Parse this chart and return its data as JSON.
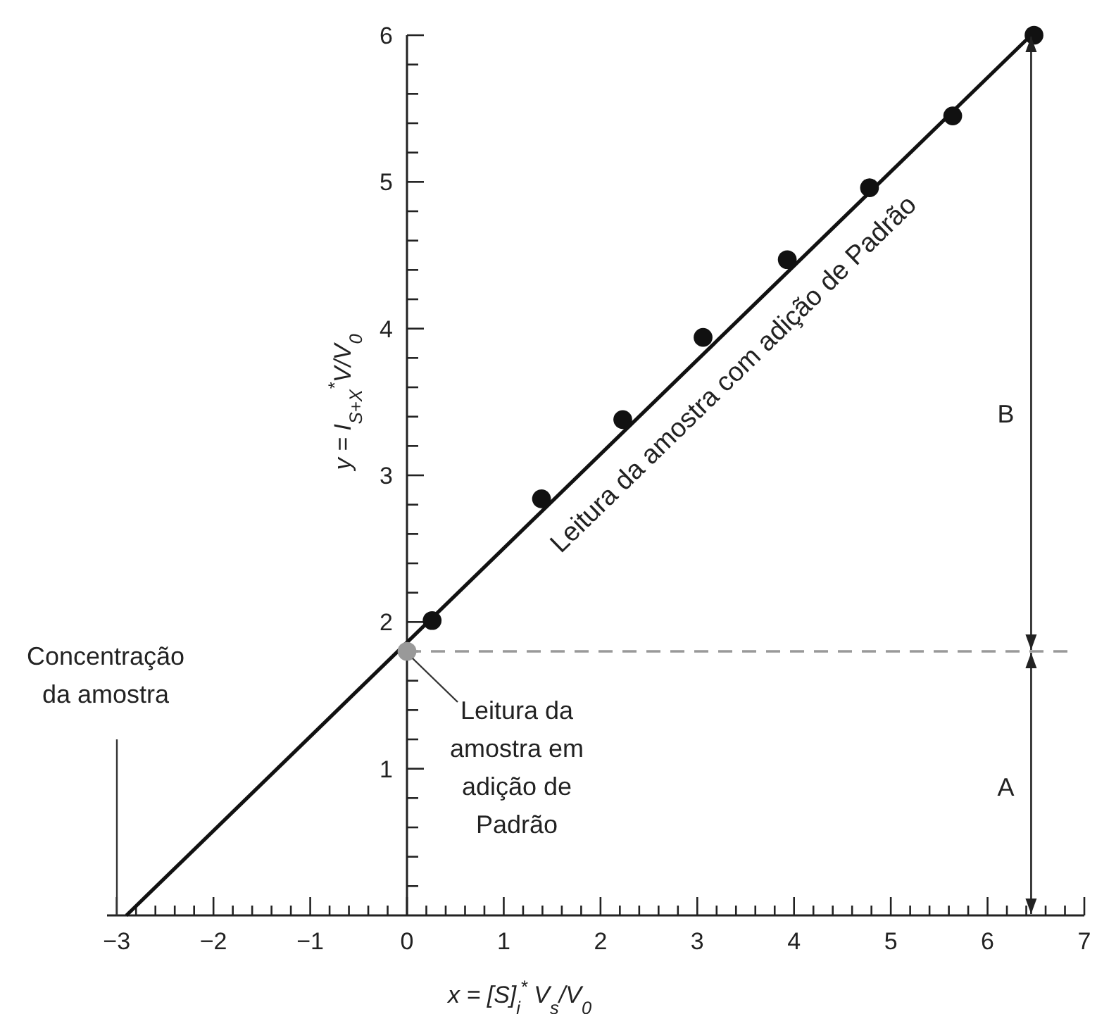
{
  "chart_data": {
    "type": "scatter",
    "xlabel": "x = [S]$_{i}$$^{*}$ V$_{s}$/V$_{0}$",
    "ylabel": "y = I$_{S+X}$$^{*}$V/V$_{0}$",
    "xlim": [
      -3.1,
      7
    ],
    "ylim": [
      0,
      6
    ],
    "xticks": [
      {
        "value": -3,
        "label": "−3"
      },
      {
        "value": -2.8,
        "label": null
      },
      {
        "value": -2.6,
        "label": null
      },
      {
        "value": -2.4,
        "label": null
      },
      {
        "value": -2.2,
        "label": null
      },
      {
        "value": -2,
        "label": "−2"
      },
      {
        "value": -1.8,
        "label": null
      },
      {
        "value": -1.6,
        "label": null
      },
      {
        "value": -1.4,
        "label": null
      },
      {
        "value": -1.2,
        "label": null
      },
      {
        "value": -1,
        "label": "−1"
      },
      {
        "value": -0.8,
        "label": null
      },
      {
        "value": -0.6,
        "label": null
      },
      {
        "value": -0.4,
        "label": null
      },
      {
        "value": -0.2,
        "label": null
      },
      0,
      {
        "value": 0.2,
        "label": null
      },
      {
        "value": 0.4,
        "label": null
      },
      {
        "value": 0.6,
        "label": null
      },
      {
        "value": 0.8,
        "label": null
      },
      1,
      {
        "value": 1.2,
        "label": null
      },
      {
        "value": 1.4,
        "label": null
      },
      {
        "value": 1.6,
        "label": null
      },
      {
        "value": 1.8,
        "label": null
      },
      2,
      {
        "value": 2.2,
        "label": null
      },
      {
        "value": 2.4,
        "label": null
      },
      {
        "value": 2.6,
        "label": null
      },
      {
        "value": 2.8,
        "label": null
      },
      3,
      {
        "value": 3.2,
        "label": null
      },
      {
        "value": 3.4,
        "label": null
      },
      {
        "value": 3.6,
        "label": null
      },
      {
        "value": 3.8,
        "label": null
      },
      4,
      {
        "value": 4.2,
        "label": null
      },
      {
        "value": 4.4,
        "label": null
      },
      {
        "value": 4.6,
        "label": null
      },
      {
        "value": 4.8,
        "label": null
      },
      5,
      {
        "value": 5.2,
        "label": null
      },
      {
        "value": 5.4,
        "label": null
      },
      {
        "value": 5.6,
        "label": null
      },
      {
        "value": 5.8,
        "label": null
      },
      6,
      {
        "value": 6.2,
        "label": null
      },
      {
        "value": 6.4,
        "label": null
      },
      {
        "value": 6.6,
        "label": null
      },
      {
        "value": 6.8,
        "label": null
      },
      7
    ],
    "yticks": [
      {
        "value": 0.2,
        "label": null
      },
      {
        "value": 0.4,
        "label": null
      },
      {
        "value": 0.6,
        "label": null
      },
      {
        "value": 0.8,
        "label": null
      },
      1,
      {
        "value": 1.2,
        "label": null
      },
      {
        "value": 1.4,
        "label": null
      },
      {
        "value": 1.6,
        "label": null
      },
      {
        "value": 1.8,
        "label": null
      },
      2,
      {
        "value": 2.2,
        "label": null
      },
      {
        "value": 2.4,
        "label": null
      },
      {
        "value": 2.6,
        "label": null
      },
      {
        "value": 2.8,
        "label": null
      },
      3,
      {
        "value": 3.2,
        "label": null
      },
      {
        "value": 3.4,
        "label": null
      },
      {
        "value": 3.6,
        "label": null
      },
      {
        "value": 3.8,
        "label": null
      },
      4,
      {
        "value": 4.2,
        "label": null
      },
      {
        "value": 4.4,
        "label": null
      },
      {
        "value": 4.6,
        "label": null
      },
      {
        "value": 4.8,
        "label": null
      },
      5,
      {
        "value": 5.2,
        "label": null
      },
      {
        "value": 5.4,
        "label": null
      },
      {
        "value": 5.6,
        "label": null
      },
      {
        "value": 5.8,
        "label": null
      },
      6
    ],
    "grid": false,
    "marker": "circle",
    "series": [
      {
        "color": "#111111",
        "x": [
          0.26,
          1.39,
          2.23,
          3.06,
          3.93,
          4.78,
          5.64,
          6.48
        ],
        "values": [
          2.01,
          2.84,
          3.38,
          3.94,
          4.47,
          4.96,
          5.45,
          6.0
        ]
      },
      {
        "color": "#999999",
        "x": [
          0
        ],
        "values": [
          1.8
        ]
      },
      {
        "type": "line",
        "color": "#111111",
        "marker": "none",
        "line_style": "solid",
        "x": [
          -2.9,
          6.45
        ],
        "values": [
          0,
          6
        ]
      }
    ],
    "ref_lines": [
      {
        "axis": "y",
        "value": 1.8,
        "color": "#999999",
        "line_style": "dashed"
      }
    ],
    "annotations": [
      "Concentração da amostra",
      {
        "text": "Leitura da amostra em adição de Padrão",
        "x": 0,
        "y": 1.8
      },
      "Leitura da amostra com adição de Padrão",
      "A",
      "B"
    ]
  }
}
